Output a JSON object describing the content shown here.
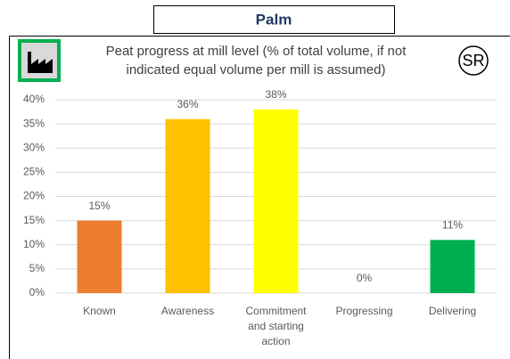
{
  "header": "Palm",
  "badge": "SR",
  "chart_data": {
    "type": "bar",
    "title": [
      "Peat progress at mill level (% of total volume, if not",
      "indicated equal volume per mill is assumed)"
    ],
    "categories": [
      "Known",
      "Awareness",
      "Commitment and starting action",
      "Progressing",
      "Delivering"
    ],
    "values": [
      15,
      36,
      38,
      0,
      11
    ],
    "value_labels": [
      "15%",
      "36%",
      "38%",
      "0%",
      "11%"
    ],
    "colors": [
      "#ed7d31",
      "#ffc000",
      "#ffff00",
      null,
      "#00b050"
    ],
    "ylim": [
      0,
      40
    ],
    "yticks": [
      {
        "value": 0,
        "label": "0%"
      },
      {
        "value": 5,
        "label": "5%"
      },
      {
        "value": 10,
        "label": "10%"
      },
      {
        "value": 15,
        "label": "15%"
      },
      {
        "value": 20,
        "label": "20%"
      },
      {
        "value": 25,
        "label": "25%"
      },
      {
        "value": 30,
        "label": "30%"
      },
      {
        "value": 35,
        "label": "35%"
      },
      {
        "value": 40,
        "label": "40%"
      }
    ],
    "grid": true
  }
}
